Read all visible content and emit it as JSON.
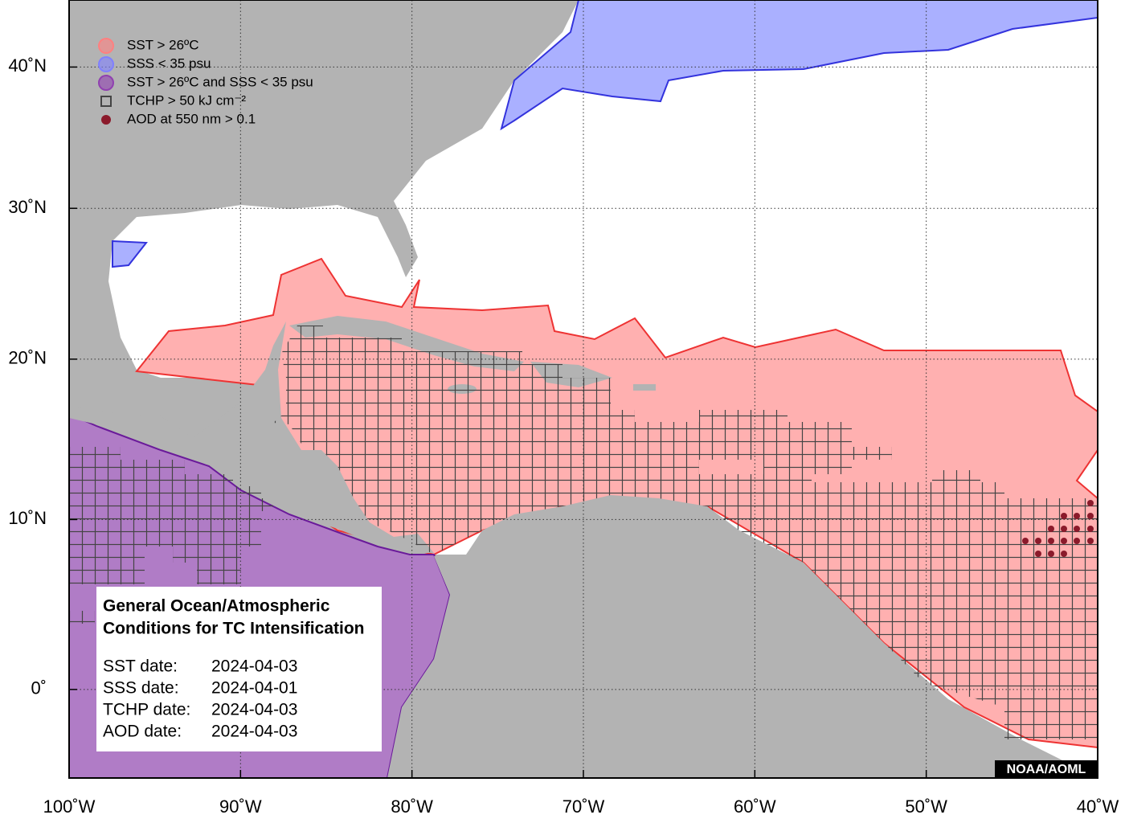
{
  "map": {
    "xlim": [
      -100,
      -40
    ],
    "ylim": [
      -5,
      45
    ],
    "xticks": [
      {
        "value": -100,
        "label": "100˚W"
      },
      {
        "value": -90,
        "label": "90˚W"
      },
      {
        "value": -80,
        "label": "80˚W"
      },
      {
        "value": -70,
        "label": "70˚W"
      },
      {
        "value": -60,
        "label": "60˚W"
      },
      {
        "value": -50,
        "label": "50˚W"
      },
      {
        "value": -40,
        "label": "40˚W"
      }
    ],
    "yticks": [
      {
        "value": 0,
        "label": "0˚"
      },
      {
        "value": 10,
        "label": "10˚N"
      },
      {
        "value": 20,
        "label": "20˚N"
      },
      {
        "value": 30,
        "label": "30˚N"
      },
      {
        "value": 40,
        "label": "40˚N"
      }
    ],
    "grid": true
  },
  "legend": [
    {
      "label": "SST > 26ºC",
      "color": "#ff8080"
    },
    {
      "label": "SSS < 35 psu",
      "color": "#8080ff"
    },
    {
      "label": "SST > 26ºC and SSS < 35 psu",
      "color": "#9040b0"
    },
    {
      "label": "TCHP > 50 kJ cm⁻²",
      "color": "#444444"
    },
    {
      "label": "AOD at 550 nm > 0.1",
      "color": "#8b1a2b"
    }
  ],
  "info": {
    "title": [
      "General Ocean/Atmospheric",
      "Conditions for TC Intensification"
    ],
    "rows": [
      {
        "label": "SST date:",
        "value": "2024-04-03"
      },
      {
        "label": "SSS date:",
        "value": "2024-04-01"
      },
      {
        "label": "TCHP date:",
        "value": "2024-04-03"
      },
      {
        "label": "AOD date:",
        "value": "2024-04-03"
      }
    ]
  },
  "credit": "NOAA/AOML"
}
